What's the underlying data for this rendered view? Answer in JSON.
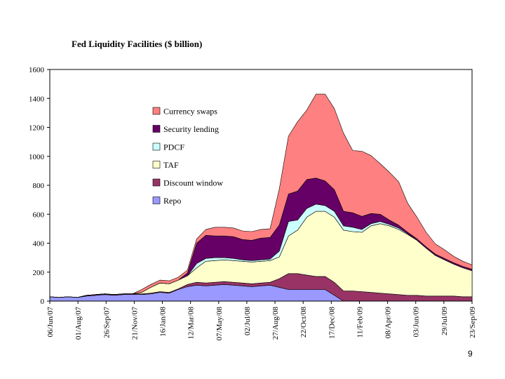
{
  "slide": {
    "page_number": "9"
  },
  "chart_data": {
    "type": "area",
    "stacked": true,
    "title": "Fed Liquidity Facilities ($ billion)",
    "xlabel": "",
    "ylabel": "",
    "ylim": [
      0,
      1600
    ],
    "yticks": [
      0,
      200,
      400,
      600,
      800,
      1000,
      1200,
      1400,
      1600
    ],
    "x_tick_labels": [
      "06/Jun/07",
      "01/Aug/07",
      "26/Sep/07",
      "21/Nov/07",
      "16/Jan/08",
      "12/Mar/08",
      "07/May/08",
      "02/Jul/08",
      "27/Aug/08",
      "22/Oct/08",
      "17/Dec/08",
      "11/Feb/09",
      "08/Apr/09",
      "03/Jun/09",
      "29/Jul/09",
      "23/Sep/09"
    ],
    "x_sample_dates": [
      "06/Jun/07",
      "27/Jun/07",
      "18/Jul/07",
      "01/Aug/07",
      "22/Aug/07",
      "12/Sep/07",
      "26/Sep/07",
      "17/Oct/07",
      "07/Nov/07",
      "21/Nov/07",
      "12/Dec/07",
      "02/Jan/08",
      "16/Jan/08",
      "06/Feb/08",
      "27/Feb/08",
      "12/Mar/08",
      "02/Apr/08",
      "23/Apr/08",
      "07/May/08",
      "28/May/08",
      "18/Jun/08",
      "02/Jul/08",
      "23/Jul/08",
      "13/Aug/08",
      "27/Aug/08",
      "17/Sep/08",
      "08/Oct/08",
      "22/Oct/08",
      "12/Nov/08",
      "03/Dec/08",
      "17/Dec/08",
      "07/Jan/09",
      "28/Jan/09",
      "11/Feb/09",
      "04/Mar/09",
      "25/Mar/09",
      "08/Apr/09",
      "29/Apr/09",
      "20/May/09",
      "03/Jun/09",
      "24/Jun/09",
      "15/Jul/09",
      "29/Jul/09",
      "19/Aug/09",
      "09/Sep/09",
      "23/Sep/09",
      "07/Oct/09"
    ],
    "series": [
      {
        "name": "Repo",
        "color": "#9999ff",
        "values": [
          30,
          25,
          30,
          25,
          35,
          40,
          45,
          40,
          45,
          45,
          45,
          50,
          60,
          55,
          80,
          100,
          110,
          105,
          110,
          115,
          110,
          105,
          100,
          105,
          110,
          95,
          80,
          80,
          80,
          80,
          80,
          40,
          0,
          0,
          0,
          0,
          0,
          0,
          0,
          0,
          0,
          0,
          0,
          0,
          0,
          0,
          0
        ]
      },
      {
        "name": "Discount window",
        "color": "#993366",
        "values": [
          0,
          0,
          0,
          0,
          5,
          5,
          5,
          5,
          5,
          5,
          5,
          5,
          5,
          5,
          5,
          15,
          20,
          20,
          20,
          20,
          20,
          20,
          20,
          20,
          20,
          60,
          110,
          110,
          100,
          90,
          90,
          90,
          70,
          70,
          65,
          60,
          55,
          50,
          45,
          40,
          40,
          35,
          35,
          35,
          35,
          30,
          30
        ]
      },
      {
        "name": "TAF",
        "color": "#ffffcc",
        "values": [
          0,
          0,
          0,
          0,
          0,
          0,
          0,
          0,
          0,
          0,
          10,
          40,
          60,
          60,
          60,
          60,
          100,
          150,
          150,
          150,
          150,
          150,
          150,
          150,
          150,
          150,
          260,
          300,
          400,
          450,
          450,
          450,
          420,
          410,
          410,
          460,
          480,
          470,
          450,
          420,
          380,
          330,
          280,
          250,
          220,
          200,
          180
        ]
      },
      {
        "name": "PDCF",
        "color": "#ccffff",
        "values": [
          0,
          0,
          0,
          0,
          0,
          0,
          0,
          0,
          0,
          0,
          0,
          0,
          0,
          0,
          0,
          0,
          30,
          20,
          20,
          15,
          15,
          10,
          10,
          10,
          10,
          40,
          100,
          70,
          60,
          50,
          40,
          40,
          30,
          30,
          20,
          15,
          15,
          10,
          10,
          5,
          0,
          0,
          0,
          0,
          0,
          0,
          0
        ]
      },
      {
        "name": "Security lending",
        "color": "#660066",
        "values": [
          0,
          0,
          0,
          0,
          0,
          0,
          0,
          0,
          0,
          0,
          0,
          0,
          0,
          0,
          0,
          20,
          140,
          160,
          150,
          150,
          150,
          140,
          140,
          150,
          150,
          180,
          190,
          200,
          200,
          180,
          170,
          150,
          100,
          100,
          90,
          70,
          50,
          30,
          20,
          10,
          10,
          10,
          10,
          10,
          10,
          10,
          10
        ]
      },
      {
        "name": "Currency swaps",
        "color": "#ff8080",
        "values": [
          0,
          0,
          0,
          0,
          0,
          0,
          0,
          0,
          0,
          0,
          20,
          20,
          20,
          20,
          20,
          20,
          30,
          40,
          60,
          60,
          60,
          60,
          60,
          60,
          60,
          250,
          400,
          480,
          480,
          580,
          600,
          560,
          540,
          430,
          450,
          400,
          350,
          330,
          300,
          200,
          150,
          100,
          70,
          60,
          45,
          35,
          30
        ]
      }
    ],
    "legend": {
      "placement": "upper-left inside plot, top-to-bottom order",
      "order": [
        "Currency swaps",
        "Security lending",
        "PDCF",
        "TAF",
        "Discount window",
        "Repo"
      ]
    }
  }
}
